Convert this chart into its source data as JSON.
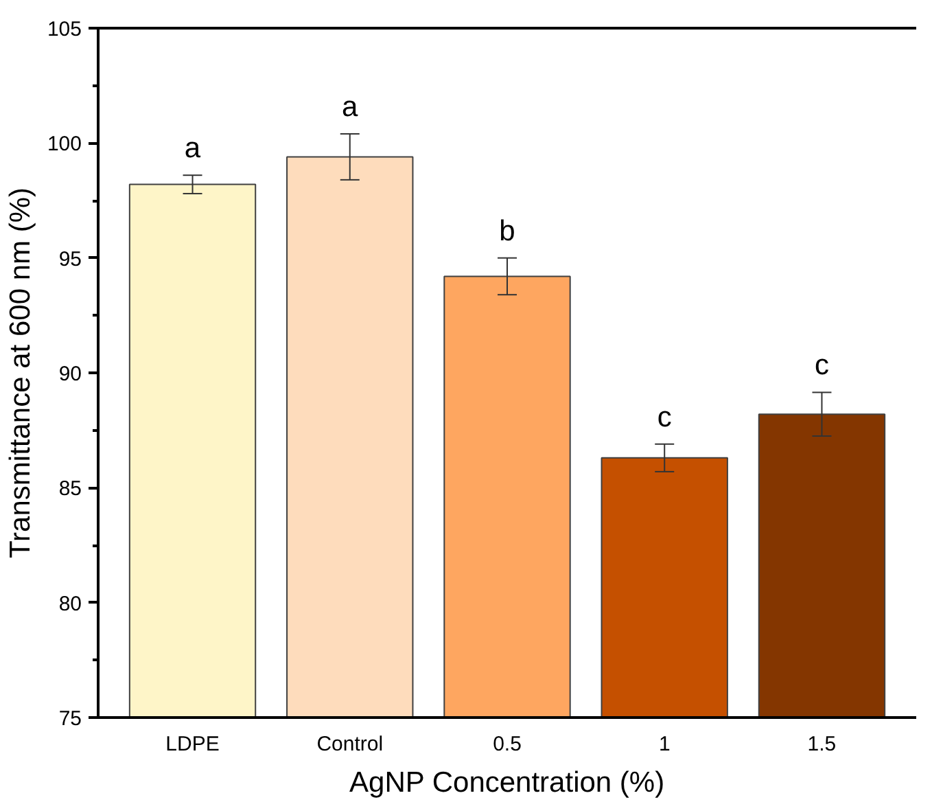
{
  "chart_data": {
    "type": "bar",
    "xlabel": "AgNP Concentration (%)",
    "ylabel": "Transmittance at 600 nm (%)",
    "categories": [
      "LDPE",
      "Control",
      "0.5",
      "1",
      "1.5"
    ],
    "values": [
      98.2,
      99.4,
      94.2,
      86.3,
      88.2
    ],
    "errors": [
      0.4,
      1.0,
      0.8,
      0.6,
      0.95
    ],
    "colors": [
      "#fef5c8",
      "#fedcbc",
      "#fea660",
      "#c55000",
      "#843600"
    ],
    "ylim": [
      75,
      105
    ],
    "yticks": [
      75,
      {
        "value": 77.5,
        "label": null
      },
      80,
      {
        "value": 82.5,
        "label": null
      },
      85,
      {
        "value": 87.5,
        "label": null
      },
      90,
      {
        "value": 92.5,
        "label": null
      },
      95,
      {
        "value": 97.5,
        "label": null
      },
      100,
      {
        "value": 102.5,
        "label": null
      },
      105
    ],
    "annotations": [
      "a",
      "a",
      "b",
      "c",
      "c"
    ],
    "grid": false
  }
}
